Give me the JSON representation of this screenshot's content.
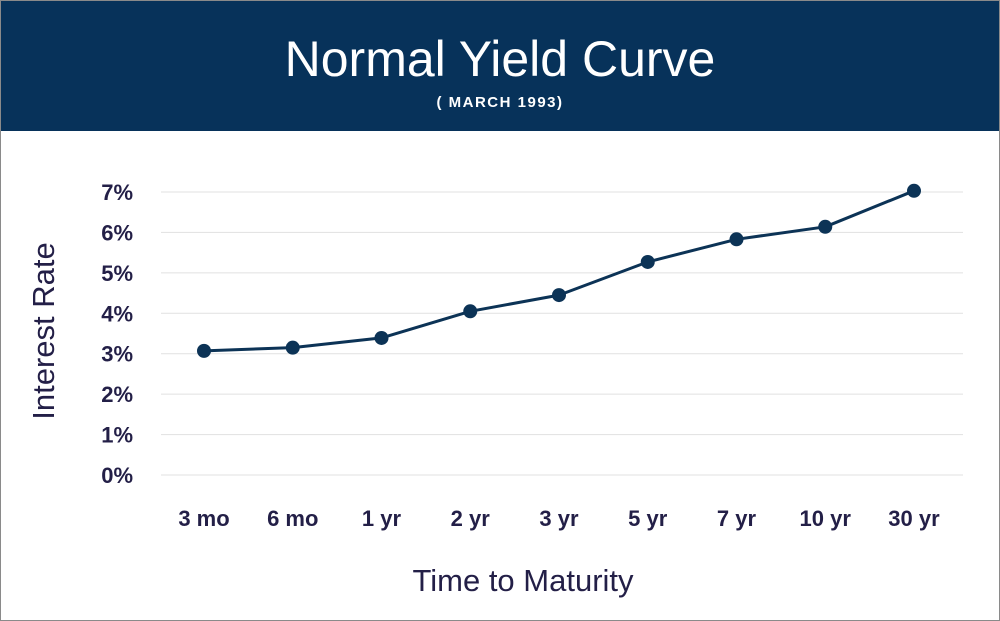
{
  "header": {
    "title": "Normal Yield Curve",
    "subtitle": "( MARCH 1993)"
  },
  "colors": {
    "header_bg": "#07325a",
    "line": "#0c3356",
    "grid": "#e1e1e1",
    "text": "#231f47"
  },
  "chart_data": {
    "type": "line",
    "title": "Normal Yield Curve",
    "subtitle": "( MARCH 1993)",
    "xlabel": "Time to Maturity",
    "ylabel": "Interest Rate",
    "categories": [
      "3 mo",
      "6 mo",
      "1 yr",
      "2 yr",
      "3 yr",
      "5 yr",
      "7 yr",
      "10 yr",
      "30 yr"
    ],
    "values": [
      3.07,
      3.15,
      3.39,
      4.05,
      4.45,
      5.27,
      5.83,
      6.14,
      7.03
    ],
    "ylim": [
      0,
      7
    ],
    "yticks": [
      0,
      1,
      2,
      3,
      4,
      5,
      6,
      7
    ],
    "ytick_labels": [
      "0%",
      "1%",
      "2%",
      "3%",
      "4%",
      "5%",
      "6%",
      "7%"
    ],
    "grid": "horizontal",
    "legend": "none"
  }
}
